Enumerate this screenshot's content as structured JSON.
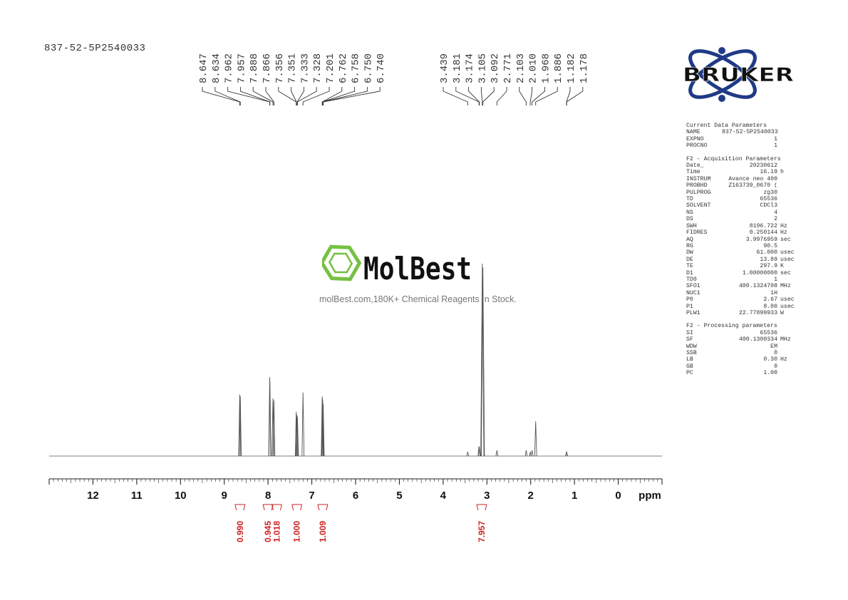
{
  "sample_id": "837-52-5P2540033",
  "watermark": {
    "brand": "MolBest",
    "tagline": "molBest.com,180K+ Chemical Reagents In Stock."
  },
  "bruker_logo_text": "BRUKER",
  "colors": {
    "spectrum": "#555555",
    "integral": "#cc2222",
    "logo_blue": "#1f3a86",
    "watermark_green": "#76c043"
  },
  "parameters": [
    {
      "title": "Current Data Parameters",
      "rows": [
        {
          "k": "NAME",
          "v": "837-52-5P2540033",
          "u": ""
        },
        {
          "k": "EXPNO",
          "v": "1",
          "u": ""
        },
        {
          "k": "PROCNO",
          "v": "1",
          "u": ""
        }
      ]
    },
    {
      "title": "F2 - Acquisition Parameters",
      "rows": [
        {
          "k": "Date_",
          "v": "20230612",
          "u": ""
        },
        {
          "k": "Time",
          "v": "16.19",
          "u": "h"
        },
        {
          "k": "INSTRUM",
          "v": "Avance neo 400",
          "u": ""
        },
        {
          "k": "PROBHD",
          "v": "Z163739_0670 (",
          "u": ""
        },
        {
          "k": "PULPROG",
          "v": "zg30",
          "u": ""
        },
        {
          "k": "TD",
          "v": "65536",
          "u": ""
        },
        {
          "k": "SOLVENT",
          "v": "CDCl3",
          "u": ""
        },
        {
          "k": "NS",
          "v": "4",
          "u": ""
        },
        {
          "k": "DS",
          "v": "2",
          "u": ""
        },
        {
          "k": "SWH",
          "v": "8196.722",
          "u": "Hz"
        },
        {
          "k": "FIDRES",
          "v": "0.250144",
          "u": "Hz"
        },
        {
          "k": "AQ",
          "v": "3.9976959",
          "u": "sec"
        },
        {
          "k": "RG",
          "v": "90.5",
          "u": ""
        },
        {
          "k": "DW",
          "v": "61.000",
          "u": "usec"
        },
        {
          "k": "DE",
          "v": "13.89",
          "u": "usec"
        },
        {
          "k": "TE",
          "v": "297.9",
          "u": "K"
        },
        {
          "k": "D1",
          "v": "1.00000000",
          "u": "sec"
        },
        {
          "k": "TD0",
          "v": "1",
          "u": ""
        },
        {
          "k": "SFO1",
          "v": "400.1324708",
          "u": "MHz"
        },
        {
          "k": "NUC1",
          "v": "1H",
          "u": ""
        },
        {
          "k": "P0",
          "v": "2.67",
          "u": "usec"
        },
        {
          "k": "P1",
          "v": "8.00",
          "u": "usec"
        },
        {
          "k": "PLW1",
          "v": "22.77899933",
          "u": "W"
        }
      ]
    },
    {
      "title": "F2 - Processing parameters",
      "rows": [
        {
          "k": "SI",
          "v": "65536",
          "u": ""
        },
        {
          "k": "SF",
          "v": "400.1300334",
          "u": "MHz"
        },
        {
          "k": "WDW",
          "v": "EM",
          "u": ""
        },
        {
          "k": "SSB",
          "v": "0",
          "u": ""
        },
        {
          "k": "LB",
          "v": "0.30",
          "u": "Hz"
        },
        {
          "k": "GB",
          "v": "0",
          "u": ""
        },
        {
          "k": "PC",
          "v": "1.00",
          "u": ""
        }
      ]
    }
  ],
  "chart_data": {
    "type": "line",
    "title": "",
    "xlabel": "ppm",
    "ylabel": "",
    "xlim": [
      13.0,
      -1.0
    ],
    "ylim": [
      0,
      1
    ],
    "x_reversed": true,
    "grid": false,
    "xticks": [
      12,
      11,
      10,
      9,
      8,
      7,
      6,
      5,
      4,
      3,
      2,
      1,
      0
    ],
    "peak_labels": {
      "group1": [
        "8.647",
        "8.634",
        "7.962",
        "7.957",
        "7.888",
        "7.866",
        "7.356",
        "7.351",
        "7.333",
        "7.328",
        "7.201",
        "6.762",
        "6.758",
        "6.750",
        "6.740"
      ],
      "group2": [
        "3.439",
        "3.181",
        "3.174",
        "3.105",
        "3.092",
        "2.771",
        "2.103",
        "2.010",
        "1.968",
        "1.886",
        "1.182",
        "1.178"
      ]
    },
    "peaks": [
      {
        "ppm": 8.647,
        "height": 0.32
      },
      {
        "ppm": 8.634,
        "height": 0.31
      },
      {
        "ppm": 7.962,
        "height": 0.41
      },
      {
        "ppm": 7.957,
        "height": 0.39
      },
      {
        "ppm": 7.888,
        "height": 0.3
      },
      {
        "ppm": 7.866,
        "height": 0.29
      },
      {
        "ppm": 7.356,
        "height": 0.23
      },
      {
        "ppm": 7.351,
        "height": 0.22
      },
      {
        "ppm": 7.333,
        "height": 0.21
      },
      {
        "ppm": 7.328,
        "height": 0.2
      },
      {
        "ppm": 7.201,
        "height": 0.33
      },
      {
        "ppm": 6.762,
        "height": 0.31
      },
      {
        "ppm": 6.758,
        "height": 0.3
      },
      {
        "ppm": 6.75,
        "height": 0.29
      },
      {
        "ppm": 6.74,
        "height": 0.27
      },
      {
        "ppm": 3.439,
        "height": 0.02
      },
      {
        "ppm": 3.181,
        "height": 0.05
      },
      {
        "ppm": 3.174,
        "height": 0.05
      },
      {
        "ppm": 3.105,
        "height": 1.0
      },
      {
        "ppm": 3.092,
        "height": 0.98
      },
      {
        "ppm": 2.771,
        "height": 0.03
      },
      {
        "ppm": 2.103,
        "height": 0.03
      },
      {
        "ppm": 2.01,
        "height": 0.02
      },
      {
        "ppm": 1.968,
        "height": 0.03
      },
      {
        "ppm": 1.886,
        "height": 0.18
      },
      {
        "ppm": 1.182,
        "height": 0.02
      },
      {
        "ppm": 1.178,
        "height": 0.02
      }
    ],
    "integrals": [
      {
        "ppm": 8.64,
        "value": "0.990"
      },
      {
        "ppm": 8.0,
        "value": "0.945"
      },
      {
        "ppm": 7.8,
        "value": "1.018"
      },
      {
        "ppm": 7.34,
        "value": "1.000"
      },
      {
        "ppm": 6.75,
        "value": "1.009"
      },
      {
        "ppm": 3.12,
        "value": "7.957"
      }
    ]
  }
}
